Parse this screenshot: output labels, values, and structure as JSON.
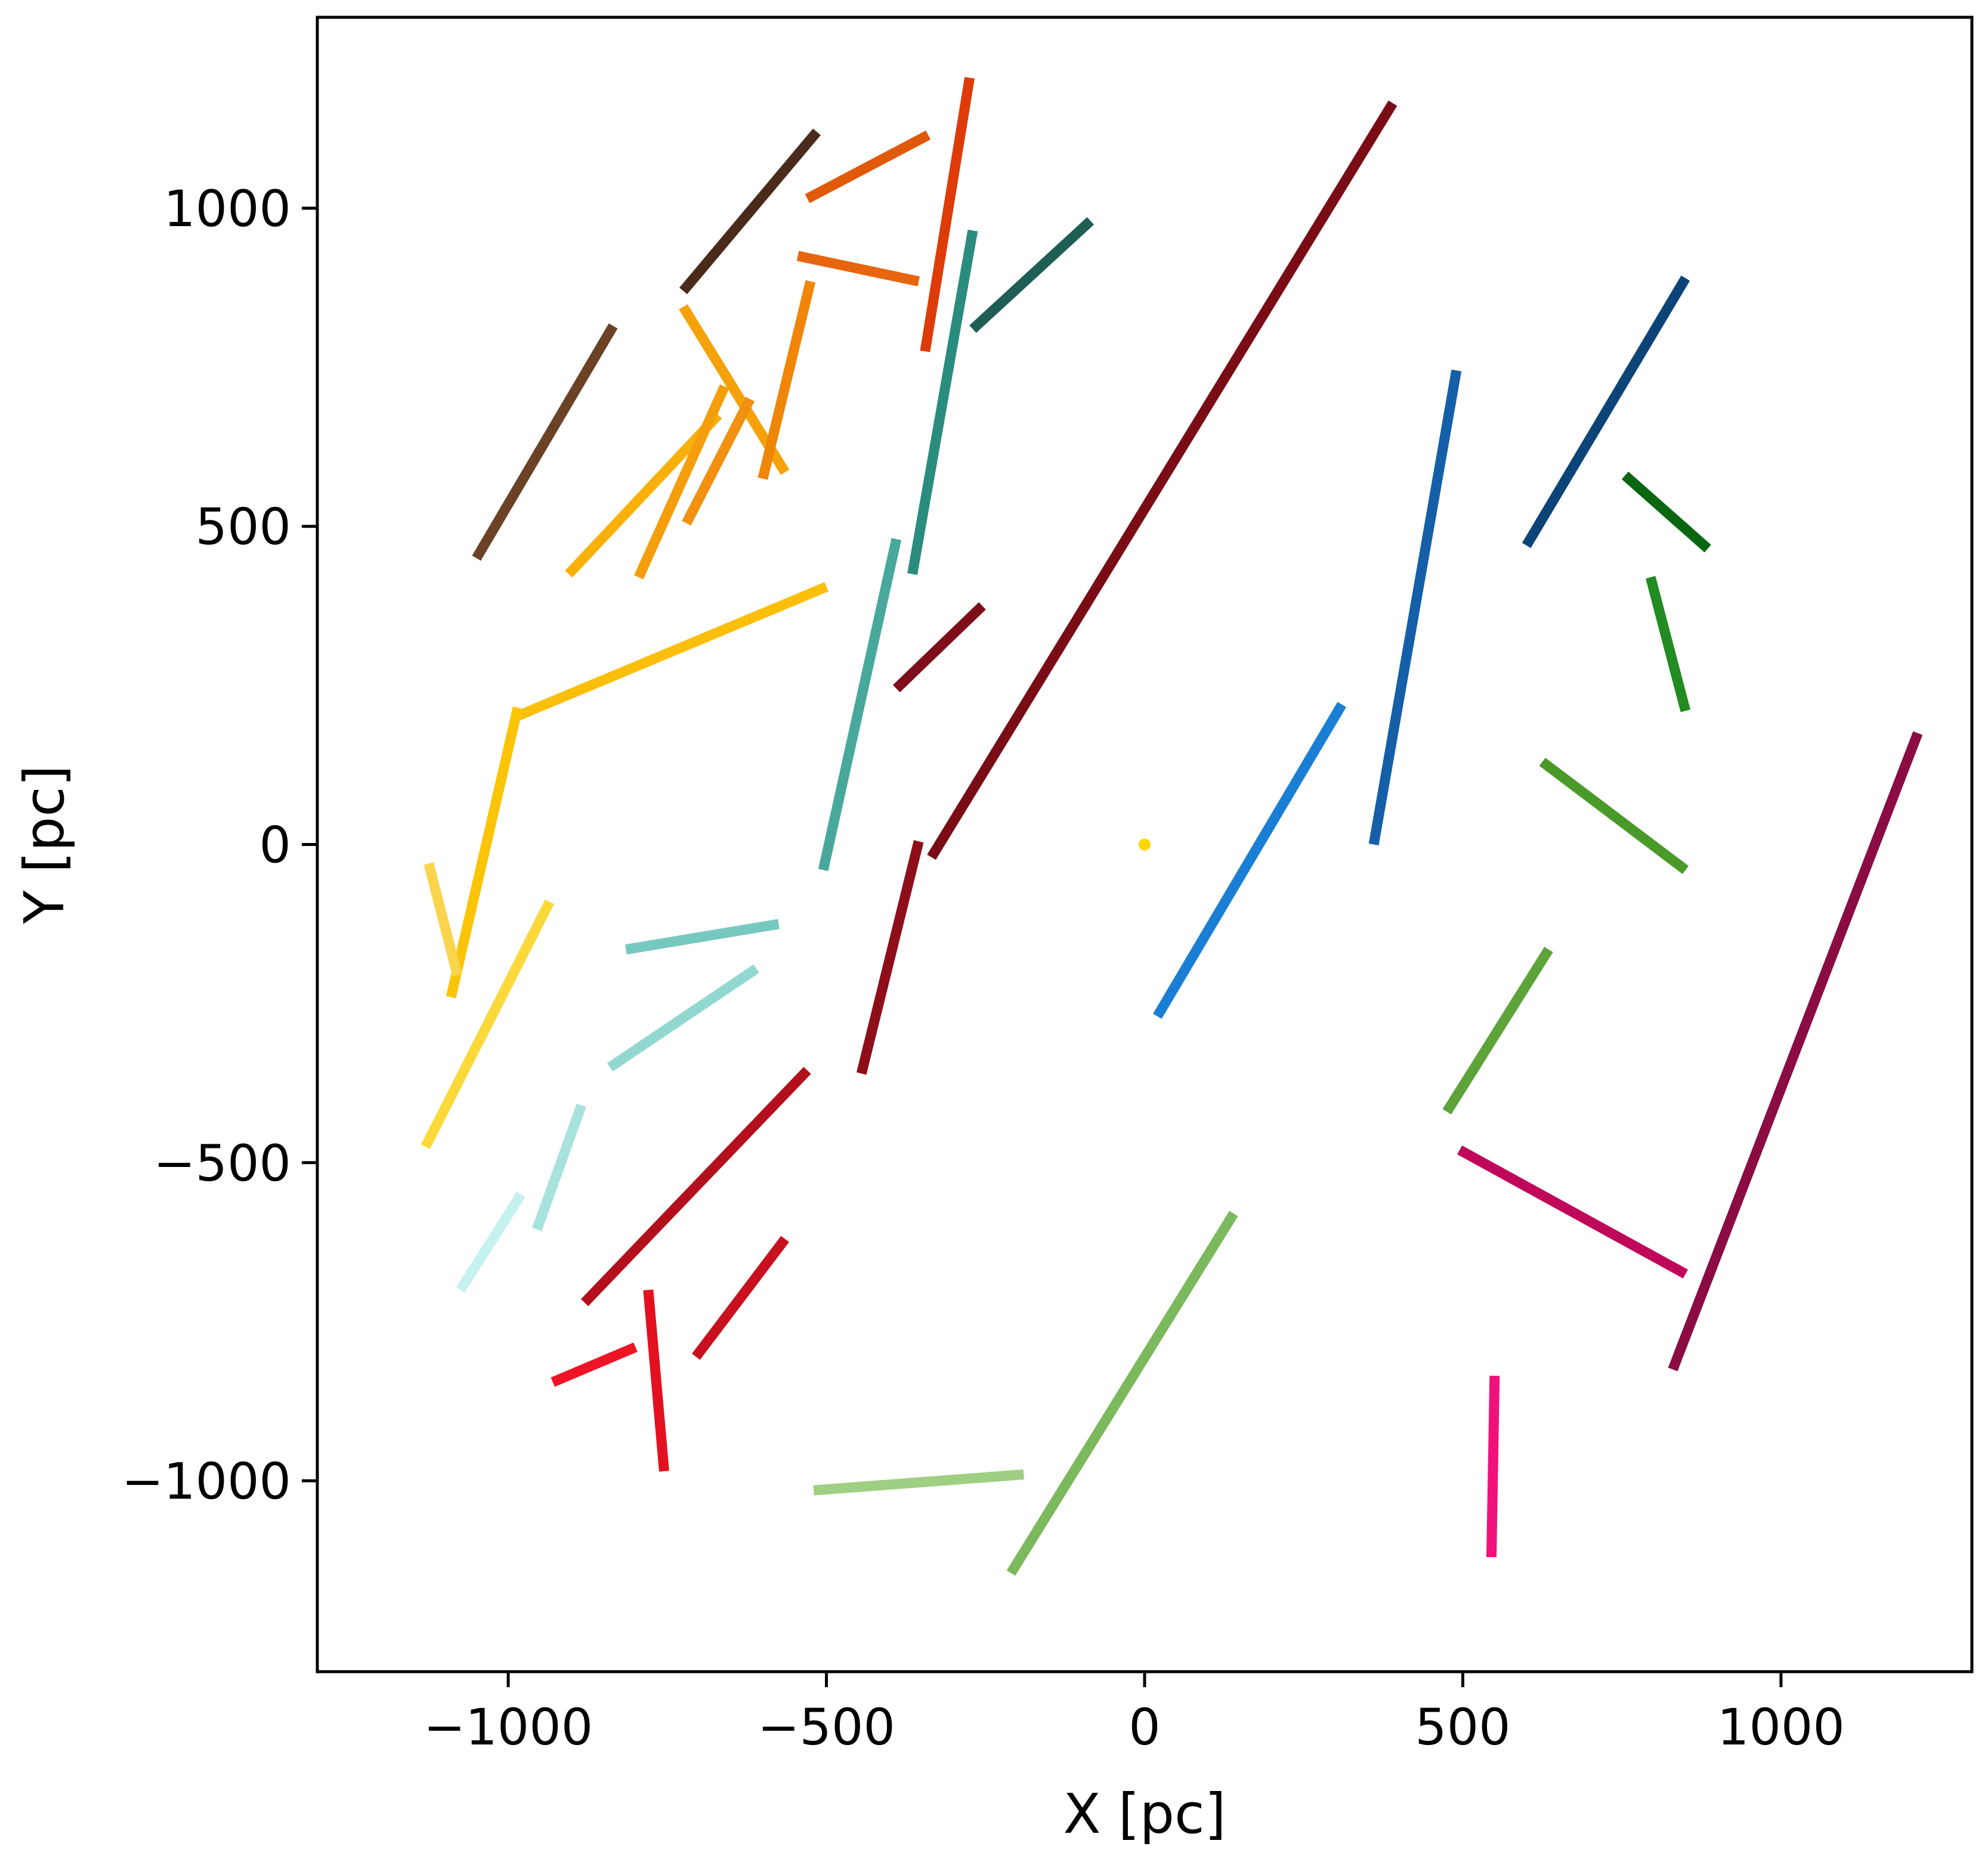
{
  "chart_data": {
    "type": "line",
    "title": "",
    "xlabel": "X [pc]",
    "ylabel": "Y [pc]",
    "xlim": [
      -1300,
      1300
    ],
    "ylim": [
      -1300,
      1300
    ],
    "xticks": [
      -1000,
      -500,
      0,
      500,
      1000
    ],
    "yticks": [
      -1000,
      -500,
      0,
      500,
      1000
    ],
    "xtick_labels": [
      "−1000",
      "−500",
      "0",
      "500",
      "1000"
    ],
    "ytick_labels": [
      "−1000",
      "−500",
      "0",
      "500",
      "1000"
    ],
    "grid": false,
    "legend": "none",
    "points": [
      {
        "x": 0,
        "y": 0,
        "color": "#ffd700"
      }
    ],
    "segments": [
      {
        "x": [
          -1050,
          -835
        ],
        "y": [
          450,
          815
        ],
        "color": "#6b4226"
      },
      {
        "x": [
          -725,
          -515
        ],
        "y": [
          870,
          1120
        ],
        "color": "#4a2a1a"
      },
      {
        "x": [
          -530,
          -340
        ],
        "y": [
          1015,
          1115
        ],
        "color": "#e05a0a"
      },
      {
        "x": [
          -545,
          -355
        ],
        "y": [
          925,
          885
        ],
        "color": "#e8650f"
      },
      {
        "x": [
          -345,
          -275
        ],
        "y": [
          775,
          1205
        ],
        "color": "#dd3b08"
      },
      {
        "x": [
          -270,
          -85
        ],
        "y": [
          810,
          980
        ],
        "color": "#1f5e55"
      },
      {
        "x": [
          -365,
          -270
        ],
        "y": [
          425,
          965
        ],
        "color": "#2a8c7e"
      },
      {
        "x": [
          -725,
          -565
        ],
        "y": [
          845,
          585
        ],
        "color": "#f5a20a"
      },
      {
        "x": [
          -600,
          -525
        ],
        "y": [
          575,
          885
        ],
        "color": "#f08508"
      },
      {
        "x": [
          -905,
          -670
        ],
        "y": [
          425,
          675
        ],
        "color": "#f9b10a"
      },
      {
        "x": [
          -795,
          -660
        ],
        "y": [
          420,
          720
        ],
        "color": "#f59e0b"
      },
      {
        "x": [
          -720,
          -620
        ],
        "y": [
          505,
          700
        ],
        "color": "#f29010"
      },
      {
        "x": [
          -990,
          -500
        ],
        "y": [
          200,
          405
        ],
        "color": "#fbbf0a"
      },
      {
        "x": [
          -1090,
          -985
        ],
        "y": [
          -240,
          215
        ],
        "color": "#fbc407"
      },
      {
        "x": [
          -1125,
          -1080
        ],
        "y": [
          -30,
          -205
        ],
        "color": "#fbd44e"
      },
      {
        "x": [
          -1130,
          -935
        ],
        "y": [
          -475,
          -90
        ],
        "color": "#fbd93a"
      },
      {
        "x": [
          -505,
          -390
        ],
        "y": [
          -40,
          480
        ],
        "color": "#48a89c"
      },
      {
        "x": [
          -390,
          -255
        ],
        "y": [
          245,
          375
        ],
        "color": "#7d0e1a"
      },
      {
        "x": [
          -335,
          390
        ],
        "y": [
          -20,
          1165
        ],
        "color": "#7a0c16"
      },
      {
        "x": [
          -815,
          -575
        ],
        "y": [
          -165,
          -125
        ],
        "color": "#76c9c0"
      },
      {
        "x": [
          -840,
          -610
        ],
        "y": [
          -350,
          -195
        ],
        "color": "#92d8d0"
      },
      {
        "x": [
          -955,
          -885
        ],
        "y": [
          -605,
          -410
        ],
        "color": "#a8e2dc"
      },
      {
        "x": [
          -1075,
          -980
        ],
        "y": [
          -700,
          -550
        ],
        "color": "#c5f2ee"
      },
      {
        "x": [
          -445,
          -355
        ],
        "y": [
          -360,
          5
        ],
        "color": "#8e0e1a"
      },
      {
        "x": [
          -880,
          -530
        ],
        "y": [
          -720,
          -355
        ],
        "color": "#b30f1c"
      },
      {
        "x": [
          -705,
          -565
        ],
        "y": [
          -805,
          -620
        ],
        "color": "#c8101f"
      },
      {
        "x": [
          -930,
          -800
        ],
        "y": [
          -845,
          -790
        ],
        "color": "#ee1426"
      },
      {
        "x": [
          -780,
          -755
        ],
        "y": [
          -700,
          -985
        ],
        "color": "#e3101f"
      },
      {
        "x": [
          -520,
          -190
        ],
        "y": [
          -1015,
          -990
        ],
        "color": "#9fcf82"
      },
      {
        "x": [
          -210,
          140
        ],
        "y": [
          -1145,
          -580
        ],
        "color": "#7bb95c"
      },
      {
        "x": [
          20,
          310
        ],
        "y": [
          -270,
          220
        ],
        "color": "#1a7fd4"
      },
      {
        "x": [
          360,
          490
        ],
        "y": [
          0,
          745
        ],
        "color": "#155fa8"
      },
      {
        "x": [
          600,
          850
        ],
        "y": [
          470,
          890
        ],
        "color": "#0c4478"
      },
      {
        "x": [
          755,
          885
        ],
        "y": [
          580,
          465
        ],
        "color": "#0a6610"
      },
      {
        "x": [
          795,
          850
        ],
        "y": [
          420,
          210
        ],
        "color": "#228b22"
      },
      {
        "x": [
          625,
          850
        ],
        "y": [
          130,
          -40
        ],
        "color": "#4a9a2a"
      },
      {
        "x": [
          475,
          635
        ],
        "y": [
          -420,
          -165
        ],
        "color": "#5da33a"
      },
      {
        "x": [
          495,
          850
        ],
        "y": [
          -480,
          -675
        ],
        "color": "#c0085a"
      },
      {
        "x": [
          830,
          1215
        ],
        "y": [
          -825,
          175
        ],
        "color": "#8a0c42"
      },
      {
        "x": [
          545,
          550
        ],
        "y": [
          -1120,
          -835
        ],
        "color": "#f0127a"
      }
    ]
  }
}
